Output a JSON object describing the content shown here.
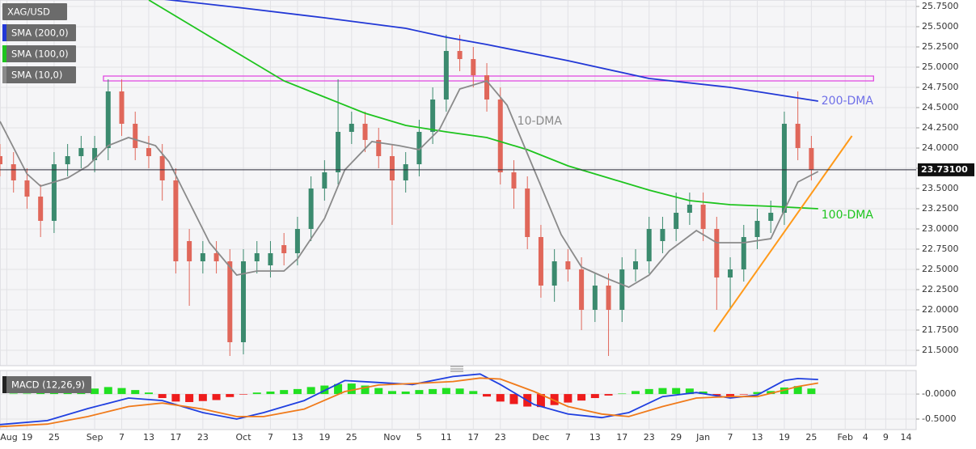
{
  "chart_data": [
    {
      "type": "candlestick",
      "title": "XAG/USD",
      "xlim": [
        0,
        135.5
      ],
      "ylim": [
        21.31,
        25.83
      ],
      "xticks": [
        {
          "value": 1,
          "label": "Aug"
        },
        {
          "value": 4,
          "label": "19"
        },
        {
          "value": 8,
          "label": "25"
        },
        {
          "value": 14,
          "label": "Sep"
        },
        {
          "value": 18,
          "label": "7"
        },
        {
          "value": 22,
          "label": "13"
        },
        {
          "value": 26,
          "label": "17"
        },
        {
          "value": 30,
          "label": "23"
        },
        {
          "value": 36,
          "label": "Oct"
        },
        {
          "value": 40,
          "label": "7"
        },
        {
          "value": 44,
          "label": "13"
        },
        {
          "value": 48,
          "label": "19"
        },
        {
          "value": 52,
          "label": "25"
        },
        {
          "value": 58,
          "label": "Nov"
        },
        {
          "value": 62,
          "label": "5"
        },
        {
          "value": 66,
          "label": "11"
        },
        {
          "value": 70,
          "label": "17"
        },
        {
          "value": 74,
          "label": "23"
        },
        {
          "value": 80,
          "label": "Dec"
        },
        {
          "value": 84,
          "label": "7"
        },
        {
          "value": 88,
          "label": "13"
        },
        {
          "value": 92,
          "label": "17"
        },
        {
          "value": 96,
          "label": "23"
        },
        {
          "value": 100,
          "label": "29"
        },
        {
          "value": 104,
          "label": "Jan"
        },
        {
          "value": 108,
          "label": "7"
        },
        {
          "value": 112,
          "label": "13"
        },
        {
          "value": 116,
          "label": "19"
        },
        {
          "value": 120,
          "label": "25"
        },
        {
          "value": 125,
          "label": "Feb"
        },
        {
          "value": 128,
          "label": "4"
        },
        {
          "value": 131,
          "label": "9"
        },
        {
          "value": 134,
          "label": "14"
        }
      ],
      "yticks": [
        {
          "value": 21.5,
          "label": "21.5000"
        },
        {
          "value": 21.75,
          "label": "21.7500"
        },
        {
          "value": 22,
          "label": "22.0000"
        },
        {
          "value": 22.25,
          "label": "22.2500"
        },
        {
          "value": 22.5,
          "label": "22.5000"
        },
        {
          "value": 22.75,
          "label": "22.7500"
        },
        {
          "value": 23,
          "label": "23.0000"
        },
        {
          "value": 23.25,
          "label": "23.2500"
        },
        {
          "value": 23.5,
          "label": "23.5000"
        },
        {
          "value": 23.75,
          "label": "23.7500"
        },
        {
          "value": 24,
          "label": "24.0000"
        },
        {
          "value": 24.25,
          "label": "24.2500"
        },
        {
          "value": 24.5,
          "label": "24.5000"
        },
        {
          "value": 24.75,
          "label": "24.7500"
        },
        {
          "value": 25,
          "label": "25.0000"
        },
        {
          "value": 25.25,
          "label": "25.2500"
        },
        {
          "value": 25.5,
          "label": "25.5000"
        },
        {
          "value": 25.75,
          "label": "25.7500"
        }
      ],
      "grid": true,
      "up_color": "#3b8a6e",
      "down_color": "#e0675a",
      "ohlc": {
        "x": [
          0,
          2,
          4,
          6,
          8,
          10,
          12,
          14,
          16,
          18,
          20,
          22,
          24,
          26,
          28,
          30,
          32,
          34,
          36,
          38,
          40,
          42,
          44,
          46,
          48,
          50,
          52,
          54,
          56,
          58,
          60,
          62,
          64,
          66,
          68,
          70,
          72,
          74,
          76,
          78,
          80,
          82,
          84,
          86,
          88,
          90,
          92,
          94,
          96,
          98,
          100,
          102,
          104,
          106,
          108,
          110,
          112,
          114,
          116,
          118,
          120
        ],
        "open": [
          23.9,
          23.8,
          23.6,
          23.4,
          23.1,
          23.8,
          23.9,
          23.85,
          24.0,
          24.7,
          24.3,
          24.0,
          23.9,
          23.6,
          22.85,
          22.6,
          22.7,
          22.6,
          21.6,
          22.6,
          22.55,
          22.8,
          22.7,
          23.0,
          23.5,
          23.7,
          24.2,
          24.3,
          24.1,
          23.9,
          23.6,
          23.8,
          24.2,
          24.6,
          25.2,
          25.1,
          24.9,
          24.6,
          23.7,
          23.5,
          22.9,
          22.3,
          22.6,
          22.5,
          22.0,
          22.3,
          22.0,
          22.5,
          22.6,
          22.85,
          23.0,
          23.2,
          23.3,
          23.0,
          22.4,
          22.5,
          22.9,
          23.1,
          23.2,
          24.3,
          24.0
        ],
        "high": [
          24.05,
          23.95,
          23.75,
          23.55,
          23.95,
          24.05,
          24.15,
          24.15,
          24.85,
          24.85,
          24.45,
          24.15,
          24.05,
          23.75,
          23.0,
          22.85,
          22.85,
          22.75,
          22.75,
          22.85,
          22.85,
          22.95,
          23.15,
          23.65,
          23.85,
          24.85,
          24.45,
          24.45,
          24.25,
          24.05,
          23.95,
          24.35,
          24.75,
          25.4,
          25.4,
          25.25,
          25.05,
          24.75,
          23.85,
          23.65,
          23.05,
          22.75,
          22.75,
          22.65,
          22.45,
          22.45,
          22.65,
          22.75,
          23.15,
          23.15,
          23.45,
          23.45,
          23.45,
          23.15,
          22.65,
          23.05,
          23.25,
          23.35,
          24.45,
          24.7,
          24.15
        ],
        "low": [
          23.65,
          23.45,
          23.25,
          22.9,
          22.95,
          23.65,
          23.75,
          23.7,
          23.85,
          24.15,
          23.85,
          23.75,
          23.35,
          22.45,
          22.05,
          22.45,
          22.45,
          21.43,
          21.45,
          22.45,
          22.4,
          22.55,
          22.55,
          22.85,
          23.35,
          23.55,
          24.05,
          23.95,
          23.75,
          23.05,
          23.45,
          23.65,
          24.05,
          24.45,
          24.95,
          24.75,
          24.45,
          23.55,
          23.25,
          22.75,
          22.15,
          22.1,
          22.35,
          21.75,
          21.85,
          21.43,
          21.85,
          22.35,
          22.45,
          22.7,
          22.85,
          23.05,
          22.85,
          22.0,
          22.0,
          22.35,
          22.75,
          22.95,
          23.05,
          23.85,
          23.6
        ],
        "close": [
          23.8,
          23.6,
          23.4,
          23.1,
          23.8,
          23.9,
          24.0,
          24.0,
          24.7,
          24.3,
          24.0,
          23.9,
          23.6,
          22.6,
          22.6,
          22.7,
          22.6,
          21.6,
          22.6,
          22.7,
          22.7,
          22.7,
          23.0,
          23.5,
          23.7,
          24.2,
          24.3,
          24.1,
          23.9,
          23.6,
          23.8,
          24.2,
          24.6,
          25.2,
          25.1,
          24.9,
          24.6,
          23.7,
          23.5,
          22.9,
          22.3,
          22.6,
          22.5,
          22.0,
          22.3,
          22.0,
          22.5,
          22.6,
          23.0,
          23.0,
          23.2,
          23.3,
          23.0,
          22.4,
          22.5,
          22.9,
          23.1,
          23.2,
          24.3,
          24.0,
          23.73
        ]
      },
      "series": [
        {
          "name": "SMA (200,0)",
          "color": "#2238d6",
          "annotation": "200-DMA",
          "annotation_color": "#6f6fe8",
          "x": [
            22,
            36,
            48,
            60,
            66,
            72,
            84,
            96,
            108,
            121
          ],
          "values": [
            25.86,
            25.73,
            25.61,
            25.48,
            25.37,
            25.28,
            25.08,
            24.86,
            24.75,
            24.58
          ]
        },
        {
          "name": "SMA (100,0)",
          "color": "#1ec41e",
          "annotation": "100-DMA",
          "annotation_color": "#1ec41e",
          "x": [
            22,
            30,
            36,
            42,
            48,
            54,
            60,
            66,
            72,
            78,
            84,
            90,
            96,
            102,
            108,
            114,
            121
          ],
          "values": [
            25.83,
            25.43,
            25.13,
            24.83,
            24.63,
            24.43,
            24.28,
            24.2,
            24.13,
            23.98,
            23.78,
            23.63,
            23.48,
            23.35,
            23.3,
            23.28,
            23.25
          ]
        },
        {
          "name": "SMA (10,0)",
          "color": "#8a8a8a",
          "annotation": "10-DMA",
          "annotation_color": "#8a8a8a",
          "x": [
            0,
            4,
            6,
            10,
            13,
            16,
            19,
            23,
            25,
            28,
            31,
            35,
            38,
            42,
            44,
            48,
            51,
            55,
            59,
            62,
            65,
            68,
            72,
            75,
            79,
            83,
            86,
            90,
            93,
            96,
            99,
            103,
            106,
            110,
            114,
            116,
            118,
            121
          ],
          "values": [
            24.33,
            23.68,
            23.53,
            23.63,
            23.78,
            24.03,
            24.13,
            24.03,
            23.83,
            23.33,
            22.83,
            22.43,
            22.48,
            22.48,
            22.63,
            23.13,
            23.73,
            24.08,
            24.03,
            23.98,
            24.23,
            24.73,
            24.83,
            24.53,
            23.73,
            22.93,
            22.53,
            22.38,
            22.28,
            22.43,
            22.73,
            22.98,
            22.83,
            22.83,
            22.88,
            23.23,
            23.58,
            23.71
          ]
        }
      ],
      "resistance": {
        "x": [
          15.3,
          129.2
        ],
        "values": [
          24.83,
          24.89
        ],
        "color": "#e040e0"
      },
      "trendline": {
        "x": [
          105.6,
          126
        ],
        "values": [
          21.73,
          24.15
        ],
        "color": "#ff9a1a"
      },
      "last_price": {
        "value": 23.731,
        "label": "23.73100"
      }
    },
    {
      "type": "macd",
      "title": "MACD (12,26,9)",
      "xlim": [
        0,
        135.5
      ],
      "ylim": [
        -0.71,
        0.47
      ],
      "yticks": [
        {
          "value": 0,
          "label": "-0.0000"
        },
        {
          "value": -0.5,
          "label": "-0.5000"
        }
      ],
      "histogram": {
        "pos_color": "#22e022",
        "neg_color": "#ee1c1c",
        "x": [
          0,
          2,
          4,
          6,
          8,
          10,
          12,
          14,
          16,
          18,
          20,
          22,
          24,
          26,
          28,
          30,
          32,
          34,
          36,
          38,
          40,
          42,
          44,
          46,
          48,
          50,
          52,
          54,
          56,
          58,
          60,
          62,
          64,
          66,
          68,
          70,
          72,
          74,
          76,
          78,
          80,
          82,
          84,
          86,
          88,
          90,
          92,
          94,
          96,
          98,
          100,
          102,
          104,
          106,
          108,
          110,
          112,
          114,
          116,
          118,
          120
        ],
        "values": [
          0,
          0.01,
          0.01,
          0.02,
          0.03,
          0.04,
          0.05,
          0.11,
          0.14,
          0.12,
          0.08,
          0.03,
          -0.08,
          -0.15,
          -0.16,
          -0.14,
          -0.12,
          -0.06,
          -0.01,
          0.03,
          0.05,
          0.08,
          0.1,
          0.14,
          0.17,
          0.2,
          0.21,
          0.17,
          0.12,
          0.06,
          0.05,
          0.08,
          0.1,
          0.12,
          0.11,
          0.06,
          -0.05,
          -0.15,
          -0.2,
          -0.25,
          -0.26,
          -0.22,
          -0.17,
          -0.13,
          -0.08,
          -0.03,
          0.01,
          0.06,
          0.1,
          0.12,
          0.12,
          0.11,
          0.05,
          -0.03,
          -0.04,
          -0.01,
          0.04,
          0.06,
          0.13,
          0.16,
          0.11
        ]
      },
      "series": [
        {
          "color": "#1f3fe0",
          "x": [
            0,
            7,
            13,
            19,
            24,
            30,
            35,
            39,
            45,
            51,
            56,
            61,
            67,
            71,
            74,
            79,
            84,
            89,
            93,
            98,
            103,
            108,
            112,
            116,
            118,
            121
          ],
          "values": [
            -0.61,
            -0.53,
            -0.29,
            -0.08,
            -0.13,
            -0.37,
            -0.5,
            -0.37,
            -0.13,
            0.27,
            0.23,
            0.19,
            0.35,
            0.4,
            0.19,
            -0.21,
            -0.4,
            -0.47,
            -0.37,
            -0.05,
            0.03,
            -0.08,
            -0.02,
            0.27,
            0.31,
            0.29
          ]
        },
        {
          "color": "#f07a1a",
          "x": [
            0,
            7,
            13,
            19,
            24,
            30,
            35,
            39,
            45,
            51,
            56,
            61,
            67,
            71,
            74,
            79,
            84,
            89,
            93,
            98,
            103,
            108,
            112,
            116,
            118,
            121
          ],
          "values": [
            -0.65,
            -0.6,
            -0.45,
            -0.25,
            -0.18,
            -0.3,
            -0.45,
            -0.45,
            -0.3,
            0.05,
            0.18,
            0.21,
            0.25,
            0.32,
            0.3,
            0.05,
            -0.25,
            -0.4,
            -0.45,
            -0.25,
            -0.08,
            -0.05,
            -0.05,
            0.08,
            0.15,
            0.22
          ]
        }
      ]
    }
  ]
}
